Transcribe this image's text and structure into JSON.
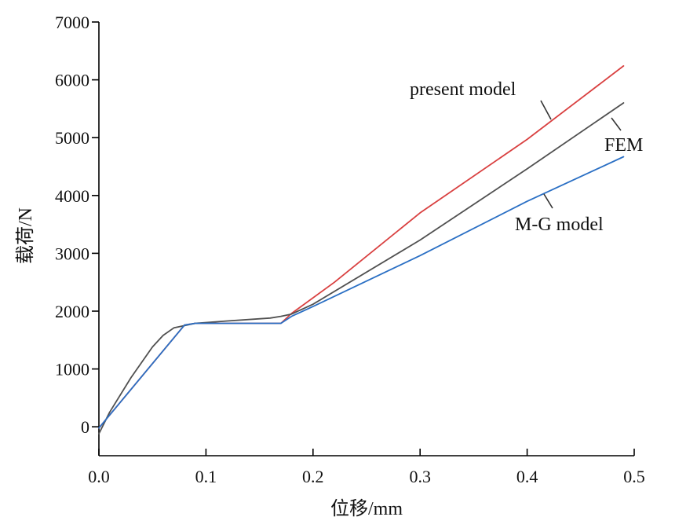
{
  "chart_data": {
    "type": "line",
    "xlabel": "位移/mm",
    "ylabel": "载荷/N",
    "xlim": [
      0.0,
      0.5
    ],
    "ylim": [
      -500,
      7000
    ],
    "xticks": [
      {
        "value": 0.0,
        "label": "0.0"
      },
      {
        "value": 0.1,
        "label": "0.1"
      },
      {
        "value": 0.2,
        "label": "0.2"
      },
      {
        "value": 0.3,
        "label": "0.3"
      },
      {
        "value": 0.4,
        "label": "0.4"
      },
      {
        "value": 0.5,
        "label": "0.5"
      }
    ],
    "yticks": [
      {
        "value": 0,
        "label": "0"
      },
      {
        "value": 1000,
        "label": "1000"
      },
      {
        "value": 2000,
        "label": "2000"
      },
      {
        "value": 3000,
        "label": "3000"
      },
      {
        "value": 4000,
        "label": "4000"
      },
      {
        "value": 5000,
        "label": "5000"
      },
      {
        "value": 6000,
        "label": "6000"
      },
      {
        "value": 7000,
        "label": "7000"
      }
    ],
    "grid": false,
    "series": [
      {
        "name": "present model",
        "color": "#d94040",
        "x": [
          0.0,
          0.08,
          0.09,
          0.17,
          0.18,
          0.22,
          0.3,
          0.4,
          0.49
        ],
        "y": [
          -20,
          1760,
          1790,
          1790,
          1960,
          2500,
          3700,
          4970,
          6240
        ]
      },
      {
        "name": "FEM",
        "color": "#505050",
        "x": [
          0.0,
          0.01,
          0.03,
          0.05,
          0.06,
          0.07,
          0.09,
          0.12,
          0.16,
          0.17,
          0.18,
          0.2,
          0.3,
          0.4,
          0.49
        ],
        "y": [
          -120,
          250,
          850,
          1380,
          1580,
          1710,
          1790,
          1830,
          1880,
          1910,
          1950,
          2120,
          3230,
          4460,
          5600
        ]
      },
      {
        "name": "M-G model",
        "color": "#2a6fc4",
        "x": [
          0.0,
          0.08,
          0.09,
          0.17,
          0.18,
          0.2,
          0.3,
          0.4,
          0.49
        ],
        "y": [
          -20,
          1760,
          1790,
          1790,
          1910,
          2080,
          2960,
          3900,
          4670
        ]
      }
    ],
    "annotations": [
      {
        "text": "present model",
        "series": "present model",
        "anchor_x": 0.422,
        "anchor_y": 5300
      },
      {
        "text": "FEM",
        "series": "FEM",
        "anchor_x": 0.478,
        "anchor_y": 5400
      },
      {
        "text": "M-G model",
        "series": "M-G model",
        "anchor_x": 0.416,
        "anchor_y": 4010
      }
    ]
  }
}
